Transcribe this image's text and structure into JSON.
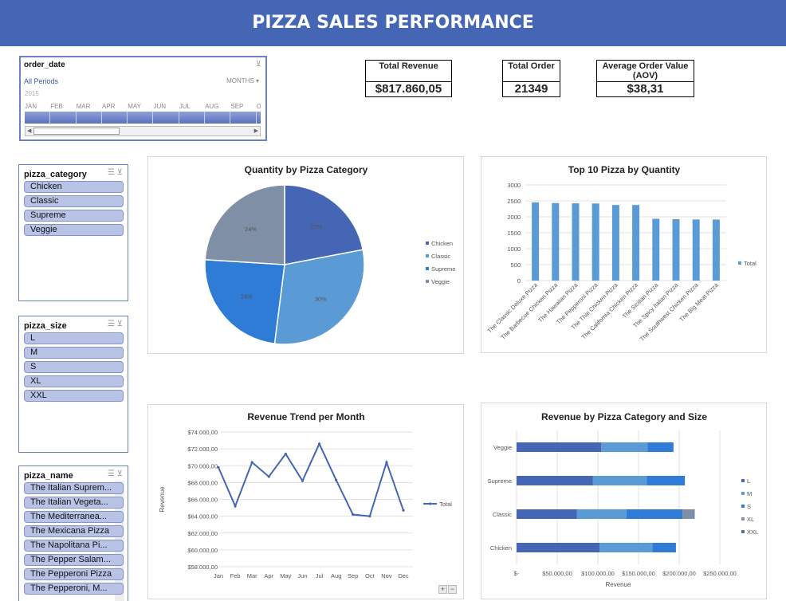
{
  "header": {
    "title": "PIZZA SALES PERFORMANCE"
  },
  "timeline": {
    "field": "order_date",
    "all_periods": "All Periods",
    "unit": "MONTHS",
    "year": "2015",
    "months": [
      "JAN",
      "FEB",
      "MAR",
      "APR",
      "MAY",
      "JUN",
      "JUL",
      "AUG",
      "SEP",
      "OCT"
    ]
  },
  "kpis": [
    {
      "label": "Total Revenue",
      "value": "$817.860,05"
    },
    {
      "label": "Total Order",
      "value": "21349"
    },
    {
      "label": "Average Order Value (AOV)",
      "value": "$38,31"
    }
  ],
  "slicers": {
    "category": {
      "title": "pizza_category",
      "items": [
        "Chicken",
        "Classic",
        "Supreme",
        "Veggie"
      ]
    },
    "size": {
      "title": "pizza_size",
      "items": [
        "L",
        "M",
        "S",
        "XL",
        "XXL"
      ]
    },
    "name": {
      "title": "pizza_name",
      "items": [
        "The Italian Suprem...",
        "The Italian Vegeta...",
        "The Mediterranea...",
        "The Mexicana Pizza",
        "The Napolitana Pi...",
        "The Pepper Salam...",
        "The Pepperoni Pizza",
        "The Pepperoni, M..."
      ]
    }
  },
  "colors": {
    "banner": "#4566b4",
    "c1": "#4566b4",
    "c2": "#5b9bd5",
    "c3": "#2e7cd6",
    "c4": "#7f8fa6",
    "c5": "#3b77a8",
    "bar": "#5b9bd5"
  },
  "chart_data": [
    {
      "type": "pie",
      "title": "Quantity by Pizza Category",
      "categories": [
        "Chicken",
        "Classic",
        "Supreme",
        "Veggie"
      ],
      "values": [
        22,
        30,
        24,
        24
      ],
      "labels": [
        "22%",
        "30%",
        "24%",
        "24%"
      ],
      "legend": "right"
    },
    {
      "type": "bar",
      "title": "Top 10 Pizza by Quantity",
      "categories": [
        "The Classic Deluxe Pizza",
        "The Barbecue Chicken Pizza",
        "The Hawaiian Pizza",
        "The Pepperoni Pizza",
        "The Thai Chicken Pizza",
        "The California Chicken Pizza",
        "The Sicilian Pizza",
        "The Spicy Italian Pizza",
        "The Southwest Chicken Pizza",
        "The Big Meat Pizza"
      ],
      "series": [
        {
          "name": "Total",
          "values": [
            2453,
            2432,
            2422,
            2418,
            2371,
            2370,
            1938,
            1924,
            1917,
            1914
          ]
        }
      ],
      "ylim": [
        0,
        3000
      ],
      "yticks": [
        "0",
        "500",
        "1000",
        "1500",
        "2000",
        "2500",
        "3000"
      ],
      "legend": "right"
    },
    {
      "type": "line",
      "title": "Revenue Trend per Month",
      "categories": [
        "Jan",
        "Feb",
        "Mar",
        "Apr",
        "May",
        "Jun",
        "Jul",
        "Aug",
        "Sep",
        "Oct",
        "Nov",
        "Dec"
      ],
      "series": [
        {
          "name": "Total",
          "values": [
            69800,
            65200,
            70400,
            68700,
            71400,
            68200,
            72600,
            68300,
            64200,
            64000,
            70400,
            64700
          ]
        }
      ],
      "ylabel": "Revenue",
      "ylim": [
        58000,
        74000
      ],
      "yticks": [
        "$58.000,00",
        "$60.000,00",
        "$62.000,00",
        "$64.000,00",
        "$66.000,00",
        "$68.000,00",
        "$70.000,00",
        "$72.000,00",
        "$74.000,00"
      ],
      "legend": "right"
    },
    {
      "type": "bar",
      "orientation": "horizontal-stacked",
      "title": "Revenue by Pizza Category and Size",
      "categories": [
        "Chicken",
        "Classic",
        "Supreme",
        "Veggie"
      ],
      "series": [
        {
          "name": "L",
          "values": [
            102000,
            74000,
            94000,
            104000
          ]
        },
        {
          "name": "M",
          "values": [
            65000,
            61000,
            66000,
            57000
          ]
        },
        {
          "name": "S",
          "values": [
            29000,
            69000,
            47000,
            32000
          ]
        },
        {
          "name": "XL",
          "values": [
            0,
            14000,
            0,
            0
          ]
        },
        {
          "name": "XXL",
          "values": [
            0,
            1000,
            0,
            0
          ]
        }
      ],
      "xlabel": "Revenue",
      "xlim": [
        0,
        250000
      ],
      "xticks": [
        "$-",
        "$50.000,00",
        "$100.000,00",
        "$150.000,00",
        "$200.000,00",
        "$250.000,00"
      ],
      "legend": "right"
    }
  ],
  "zoom_controls": {
    "plus": "+",
    "minus": "−"
  }
}
